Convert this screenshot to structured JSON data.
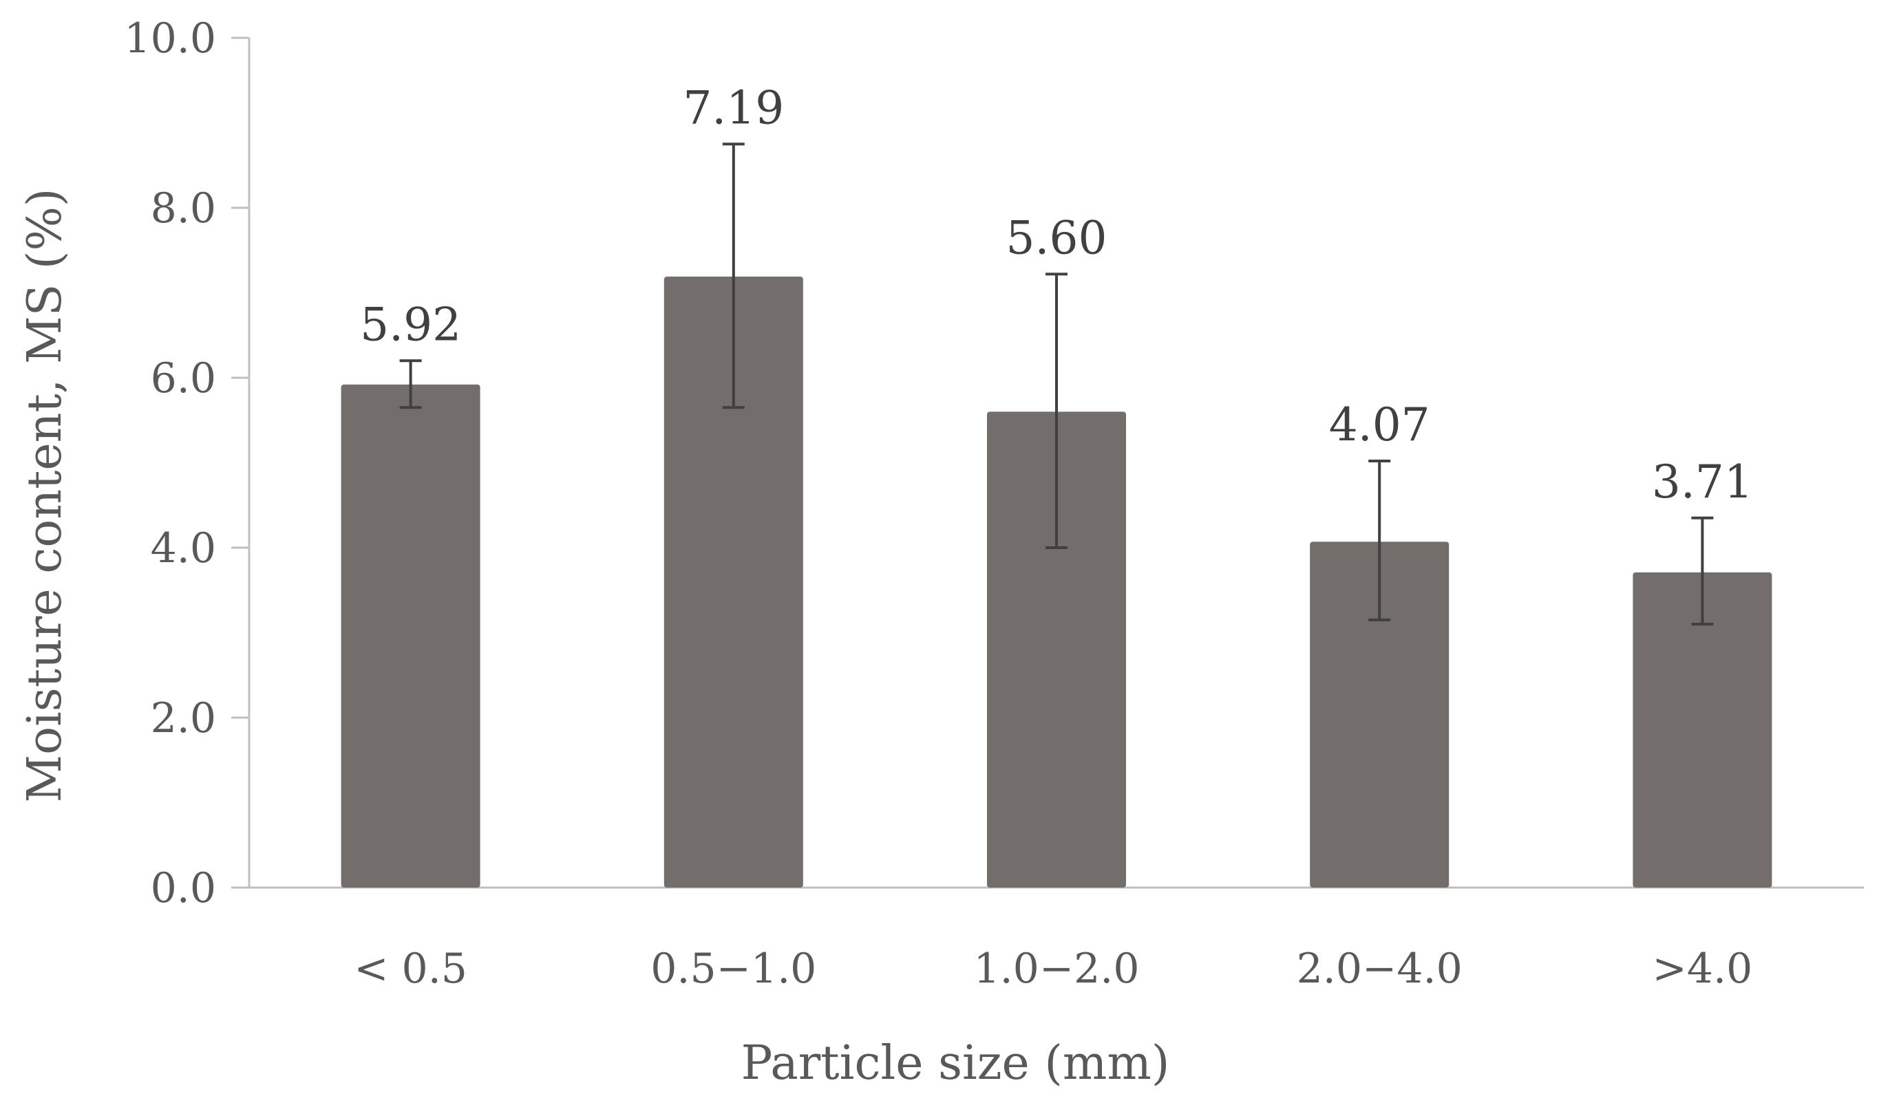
{
  "chart_data": {
    "type": "bar",
    "title": "",
    "xlabel": "Particle size (mm)",
    "ylabel": "Moisture content, MS (%)",
    "categories": [
      "< 0.5",
      "0.5−1.0",
      "1.0−2.0",
      "2.0−4.0",
      ">4.0"
    ],
    "values": [
      5.92,
      7.19,
      5.6,
      4.07,
      3.71
    ],
    "value_labels": [
      "5.92",
      "7.19",
      "5.60",
      "4.07",
      "3.71"
    ],
    "error_bars": {
      "lower": [
        5.65,
        5.65,
        4.0,
        3.15,
        3.1
      ],
      "upper": [
        6.2,
        8.75,
        7.22,
        5.02,
        4.35
      ]
    },
    "ylim": [
      0,
      10
    ],
    "yticks": [
      0,
      2,
      4,
      6,
      8,
      10
    ],
    "ytick_labels": [
      "0.0",
      "2.0",
      "4.0",
      "6.0",
      "8.0",
      "10.0"
    ],
    "grid": false,
    "legend": "none",
    "colors": {
      "bar": "#736e6c",
      "error_bar": "#404040",
      "axis": "#bfbfbf"
    }
  }
}
